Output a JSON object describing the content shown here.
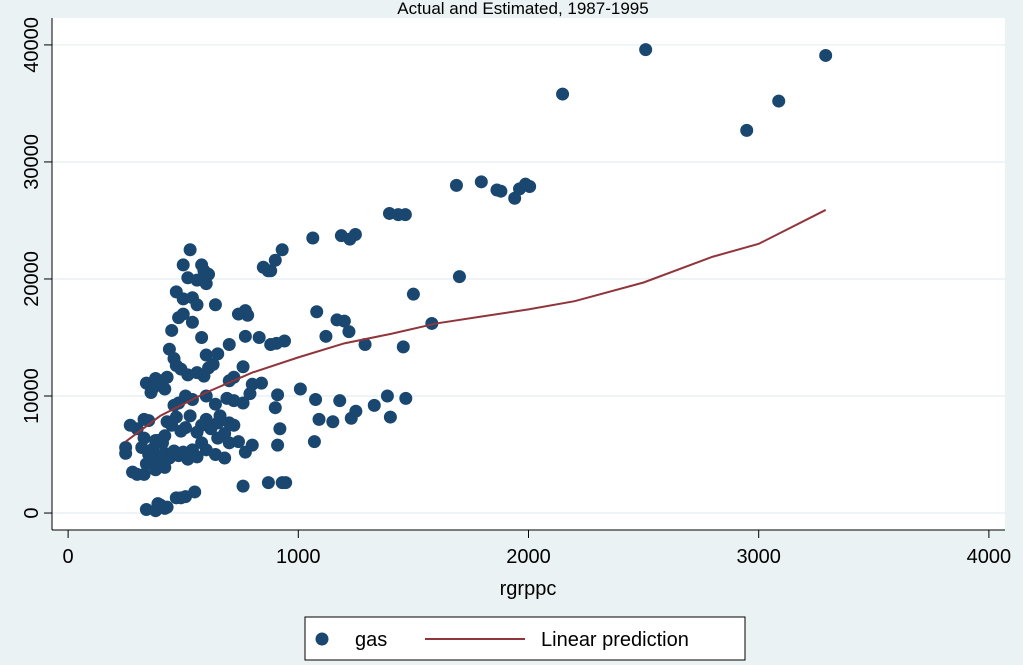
{
  "chart_data": {
    "type": "scatter",
    "title": "Actual and Estimated, 1987-1995",
    "x_label": "rgrppc",
    "xlim": [
      -70,
      4070
    ],
    "ylim": [
      -1450,
      42300
    ],
    "xticks": [
      0,
      1000,
      2000,
      3000,
      4000
    ],
    "yticks": [
      0,
      10000,
      20000,
      30000,
      40000
    ],
    "grid": "y",
    "legend": "bottom",
    "series": [
      {
        "name": "gas",
        "type": "scatter",
        "color": "#1a476f",
        "x": [
          2148,
          2509,
          3291,
          3087,
          2948,
          1687,
          1795,
          1863,
          1880,
          1940,
          1961,
          1987,
          2005,
          1396,
          1434,
          1465,
          1063,
          1187,
          1224,
          1248,
          1700,
          1500,
          1580,
          1456,
          1467,
          1400,
          1387,
          1330,
          1250,
          1230,
          1290,
          1080,
          1168,
          1200,
          1120,
          1220,
          1075,
          1070,
          1090,
          1150,
          1180,
          940,
          905,
          880,
          930,
          880,
          900,
          848,
          869,
          830,
          770,
          780,
          740,
          700,
          770,
          760,
          840,
          800,
          720,
          700,
          690,
          720,
          760,
          790,
          900,
          910,
          920,
          910,
          800,
          770,
          760,
          870,
          930,
          945,
          1009,
          530,
          520,
          500,
          580,
          590,
          610,
          560,
          600,
          470,
          500,
          540,
          560,
          640,
          480,
          500,
          540,
          450,
          580,
          600,
          650,
          440,
          460,
          470,
          490,
          520,
          560,
          590,
          610,
          630,
          430,
          400,
          380,
          340,
          360,
          370,
          420,
          460,
          480,
          510,
          540,
          600,
          640,
          660,
          650,
          700,
          720,
          680,
          700,
          740,
          650,
          620,
          600,
          580,
          560,
          530,
          510,
          490,
          470,
          450,
          430,
          420,
          410,
          390,
          370,
          350,
          330,
          300,
          270,
          250,
          250,
          280,
          300,
          330,
          340,
          360,
          380,
          400,
          420,
          440,
          460,
          480,
          500,
          520,
          540,
          560,
          600,
          580,
          640,
          680,
          350,
          330,
          320,
          400,
          380,
          420,
          340,
          400,
          420,
          390,
          380,
          470,
          490,
          510,
          550,
          430
        ],
        "values": [
          35800,
          39600,
          39100,
          35200,
          32700,
          28000,
          28300,
          27600,
          27500,
          26900,
          27700,
          28100,
          27900,
          25600,
          25500,
          25500,
          23500,
          23700,
          23400,
          23800,
          20200,
          18700,
          16200,
          14200,
          9800,
          8200,
          10000,
          9200,
          8700,
          8100,
          14400,
          17200,
          16500,
          16400,
          15100,
          15500,
          9700,
          6100,
          8000,
          7800,
          9600,
          14700,
          14500,
          14400,
          22500,
          20700,
          21600,
          21000,
          20700,
          15000,
          17300,
          16900,
          17000,
          14400,
          15100,
          12500,
          11100,
          11000,
          11600,
          11300,
          9800,
          9600,
          9400,
          10200,
          9000,
          10100,
          7200,
          5800,
          5800,
          5200,
          2300,
          2600,
          2600,
          2600,
          10600,
          22500,
          20100,
          21200,
          21200,
          20700,
          20400,
          19900,
          19600,
          18900,
          18300,
          18400,
          17800,
          17800,
          16700,
          17000,
          16300,
          15600,
          15000,
          13500,
          13600,
          14000,
          13200,
          12600,
          12300,
          11800,
          12000,
          11700,
          12400,
          12700,
          11600,
          11300,
          11500,
          11100,
          10300,
          10700,
          10600,
          9200,
          9400,
          10000,
          9700,
          10000,
          9300,
          8300,
          7700,
          7700,
          7500,
          6800,
          6000,
          6100,
          6400,
          7200,
          8000,
          7500,
          6900,
          8300,
          7300,
          7000,
          8200,
          7500,
          7800,
          6600,
          6000,
          6200,
          5500,
          5000,
          6400,
          7200,
          7500,
          5600,
          5100,
          3500,
          3300,
          3300,
          4200,
          4500,
          3700,
          4400,
          5100,
          4700,
          5300,
          4900,
          5200,
          4600,
          5400,
          4800,
          5400,
          6000,
          5000,
          4700,
          7900,
          8000,
          5600,
          4800,
          6200,
          3900,
          300,
          700,
          400,
          800,
          200,
          1300,
          1300,
          1400,
          1800,
          500
        ]
      },
      {
        "name": "Linear prediction",
        "type": "line",
        "color": "#90353b",
        "x": [
          250,
          400,
          600,
          800,
          1000,
          1200,
          1400,
          1600,
          1800,
          2000,
          2200,
          2500,
          2800,
          3000,
          3291
        ],
        "values": [
          6100,
          8300,
          10300,
          12000,
          13300,
          14500,
          15300,
          16200,
          16800,
          17400,
          18100,
          19700,
          21900,
          23000,
          25900
        ]
      }
    ]
  }
}
